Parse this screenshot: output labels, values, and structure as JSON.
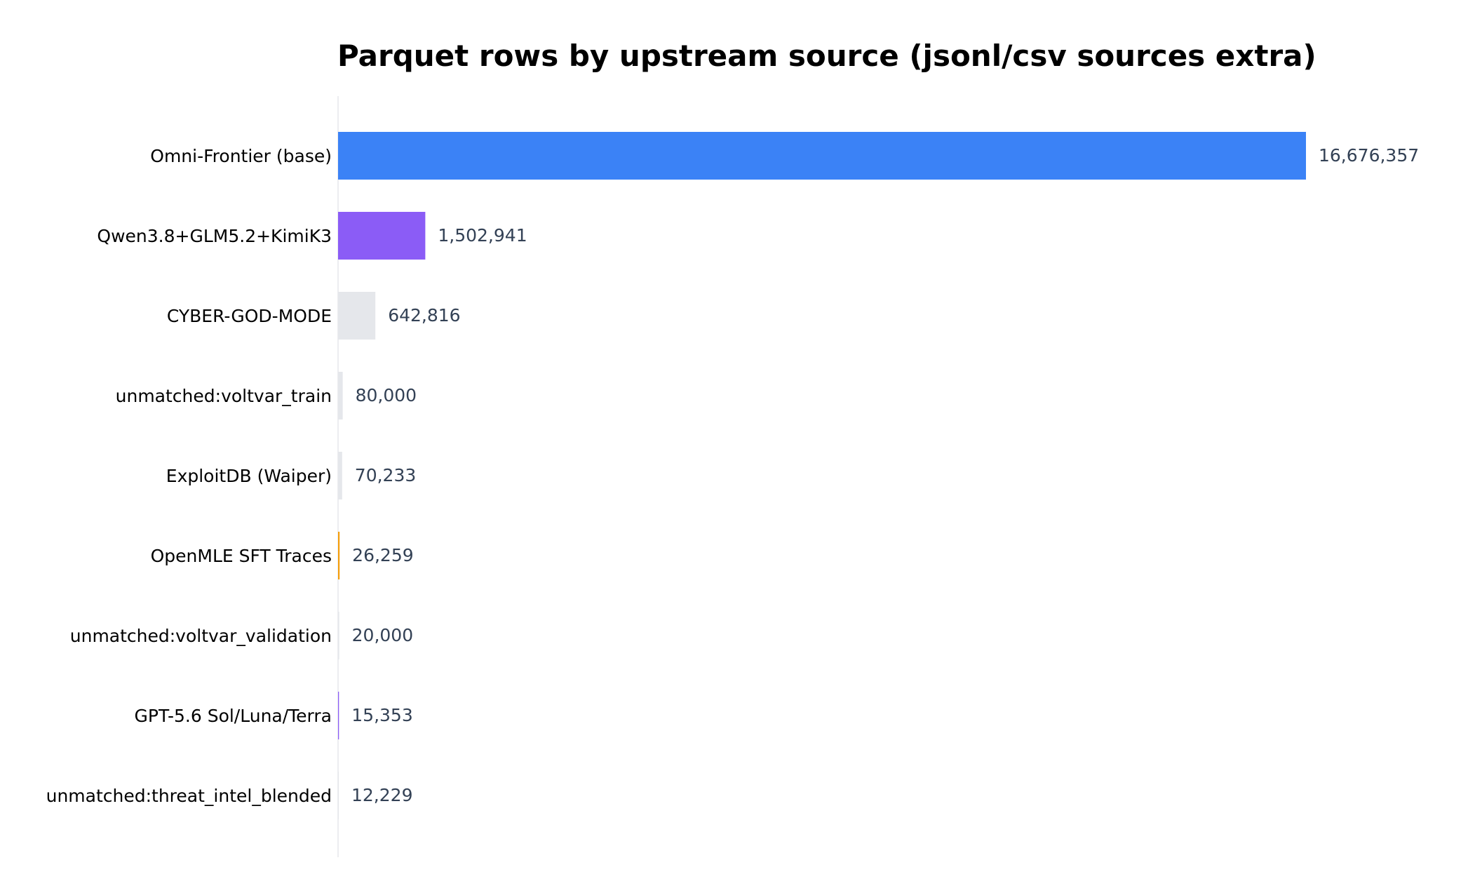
{
  "chart_data": {
    "type": "bar",
    "orientation": "horizontal",
    "title": "Parquet rows by upstream source (jsonl/csv sources extra)",
    "xlabel": "",
    "ylabel": "",
    "categories": [
      "Omni-Frontier (base)",
      "Qwen3.8+GLM5.2+KimiK3",
      "CYBER-GOD-MODE",
      "unmatched:voltvar_train",
      "ExploitDB (Waiper)",
      "OpenMLE SFT Traces",
      "unmatched:voltvar_validation",
      "GPT-5.6 Sol/Luna/Terra",
      "unmatched:threat_intel_blended"
    ],
    "values": [
      16676357,
      1502941,
      642816,
      80000,
      70233,
      26259,
      20000,
      15353,
      12229
    ],
    "value_labels": [
      "16,676,357",
      "1,502,941",
      "642,816",
      "80,000",
      "70,233",
      "26,259",
      "20,000",
      "15,353",
      "12,229"
    ],
    "colors": [
      "#3b82f6",
      "#8b5cf6",
      "#e5e7eb",
      "#e5e7eb",
      "#e5e7eb",
      "#f59e0b",
      "#e5e7eb",
      "#8b5cf6",
      "#e5e7eb"
    ],
    "xlim": [
      0,
      16676357
    ],
    "grid": false,
    "legend": "none"
  }
}
